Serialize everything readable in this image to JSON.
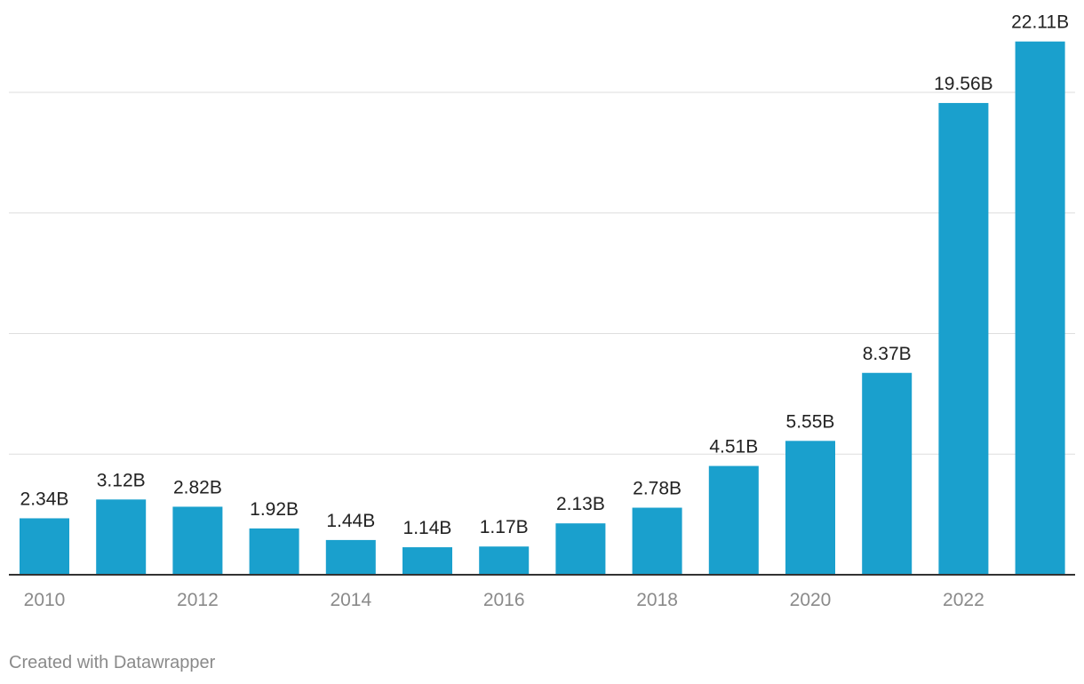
{
  "chart_data": {
    "type": "bar",
    "categories": [
      "2010",
      "2011",
      "2012",
      "2013",
      "2014",
      "2015",
      "2016",
      "2017",
      "2018",
      "2019",
      "2020",
      "2021",
      "2022",
      "2023"
    ],
    "values": [
      2.34,
      3.12,
      2.82,
      1.92,
      1.44,
      1.14,
      1.17,
      2.13,
      2.78,
      4.51,
      5.55,
      8.37,
      19.56,
      22.11
    ],
    "value_labels": [
      "2.34B",
      "3.12B",
      "2.82B",
      "1.92B",
      "1.44B",
      "1.14B",
      "1.17B",
      "2.13B",
      "2.78B",
      "4.51B",
      "5.55B",
      "8.37B",
      "19.56B",
      "22.11B"
    ],
    "x_tick_labels": [
      "2010",
      "",
      "2012",
      "",
      "2014",
      "",
      "2016",
      "",
      "2018",
      "",
      "2020",
      "",
      "2022",
      ""
    ],
    "ylim": [
      0,
      25
    ],
    "y_gridlines": [
      5,
      10,
      15,
      20
    ],
    "grid": true,
    "colors": {
      "bar": "#1aa0cd",
      "grid": "#dedede",
      "axis": "#333333",
      "label": "#222222",
      "tick": "#8a8a8a"
    }
  },
  "footer": {
    "credit": "Created with Datawrapper"
  }
}
